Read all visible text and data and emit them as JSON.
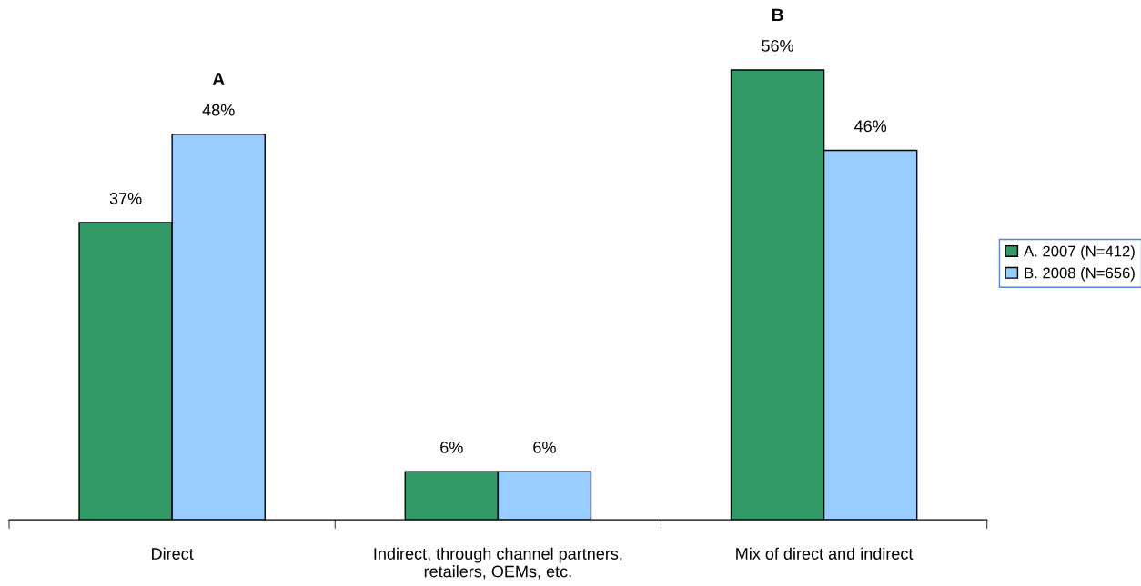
{
  "chart_data": {
    "type": "bar",
    "categories": [
      "Direct",
      "Indirect, through channel partners,\nretailers, OEMs, etc.",
      "Mix of direct and indirect"
    ],
    "series": [
      {
        "name": "A. 2007 (N=412)",
        "color": "#339966",
        "values": [
          37,
          6,
          56
        ],
        "value_labels": [
          "37%",
          "6%",
          "56%"
        ]
      },
      {
        "name": "B. 2008 (N=656)",
        "color": "#99ccff",
        "values": [
          48,
          6,
          46
        ],
        "value_labels": [
          "48%",
          "6%",
          "46%"
        ]
      }
    ],
    "annotations": [
      "A",
      "B"
    ],
    "legend": "right",
    "grid": false
  }
}
